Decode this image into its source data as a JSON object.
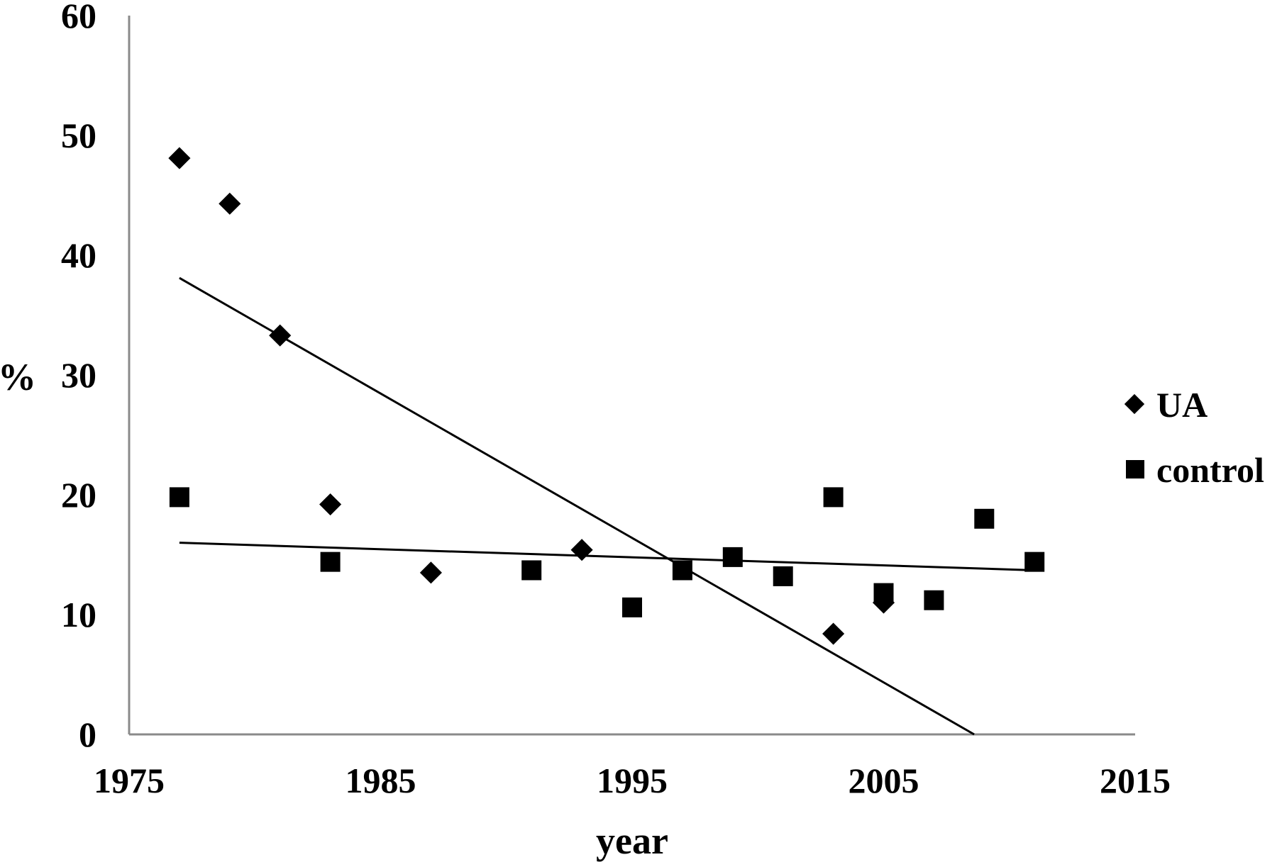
{
  "chart_data": {
    "type": "scatter",
    "title": "",
    "xlabel": "year",
    "ylabel": "%",
    "xlim": [
      1975,
      2015
    ],
    "ylim": [
      0,
      60
    ],
    "xticks": [
      1975,
      1985,
      1995,
      2005,
      2015
    ],
    "yticks": [
      0,
      10,
      20,
      30,
      40,
      50,
      60
    ],
    "grid": false,
    "legend_position": "right",
    "series": [
      {
        "name": "UA",
        "marker": "diamond",
        "color": "#000000",
        "x": [
          1977,
          1979,
          1981,
          1983,
          1987,
          1993,
          2003,
          2005
        ],
        "y": [
          48.1,
          44.3,
          33.3,
          19.2,
          13.5,
          15.4,
          8.4,
          11.0
        ]
      },
      {
        "name": "control",
        "marker": "square",
        "color": "#000000",
        "x": [
          1977,
          1983,
          1991,
          1995,
          1997,
          1999,
          2001,
          2003,
          2005,
          2007,
          2009,
          2011
        ],
        "y": [
          19.8,
          14.4,
          13.7,
          10.6,
          13.7,
          14.8,
          13.2,
          19.8,
          11.8,
          11.2,
          18.0,
          14.4
        ]
      }
    ],
    "trendlines": [
      {
        "series": "UA",
        "type": "linear",
        "x": [
          1977,
          2008.6
        ],
        "y": [
          38.1,
          0
        ]
      },
      {
        "series": "control",
        "type": "linear",
        "x": [
          1977,
          2011
        ],
        "y": [
          16.0,
          13.7
        ]
      }
    ]
  }
}
